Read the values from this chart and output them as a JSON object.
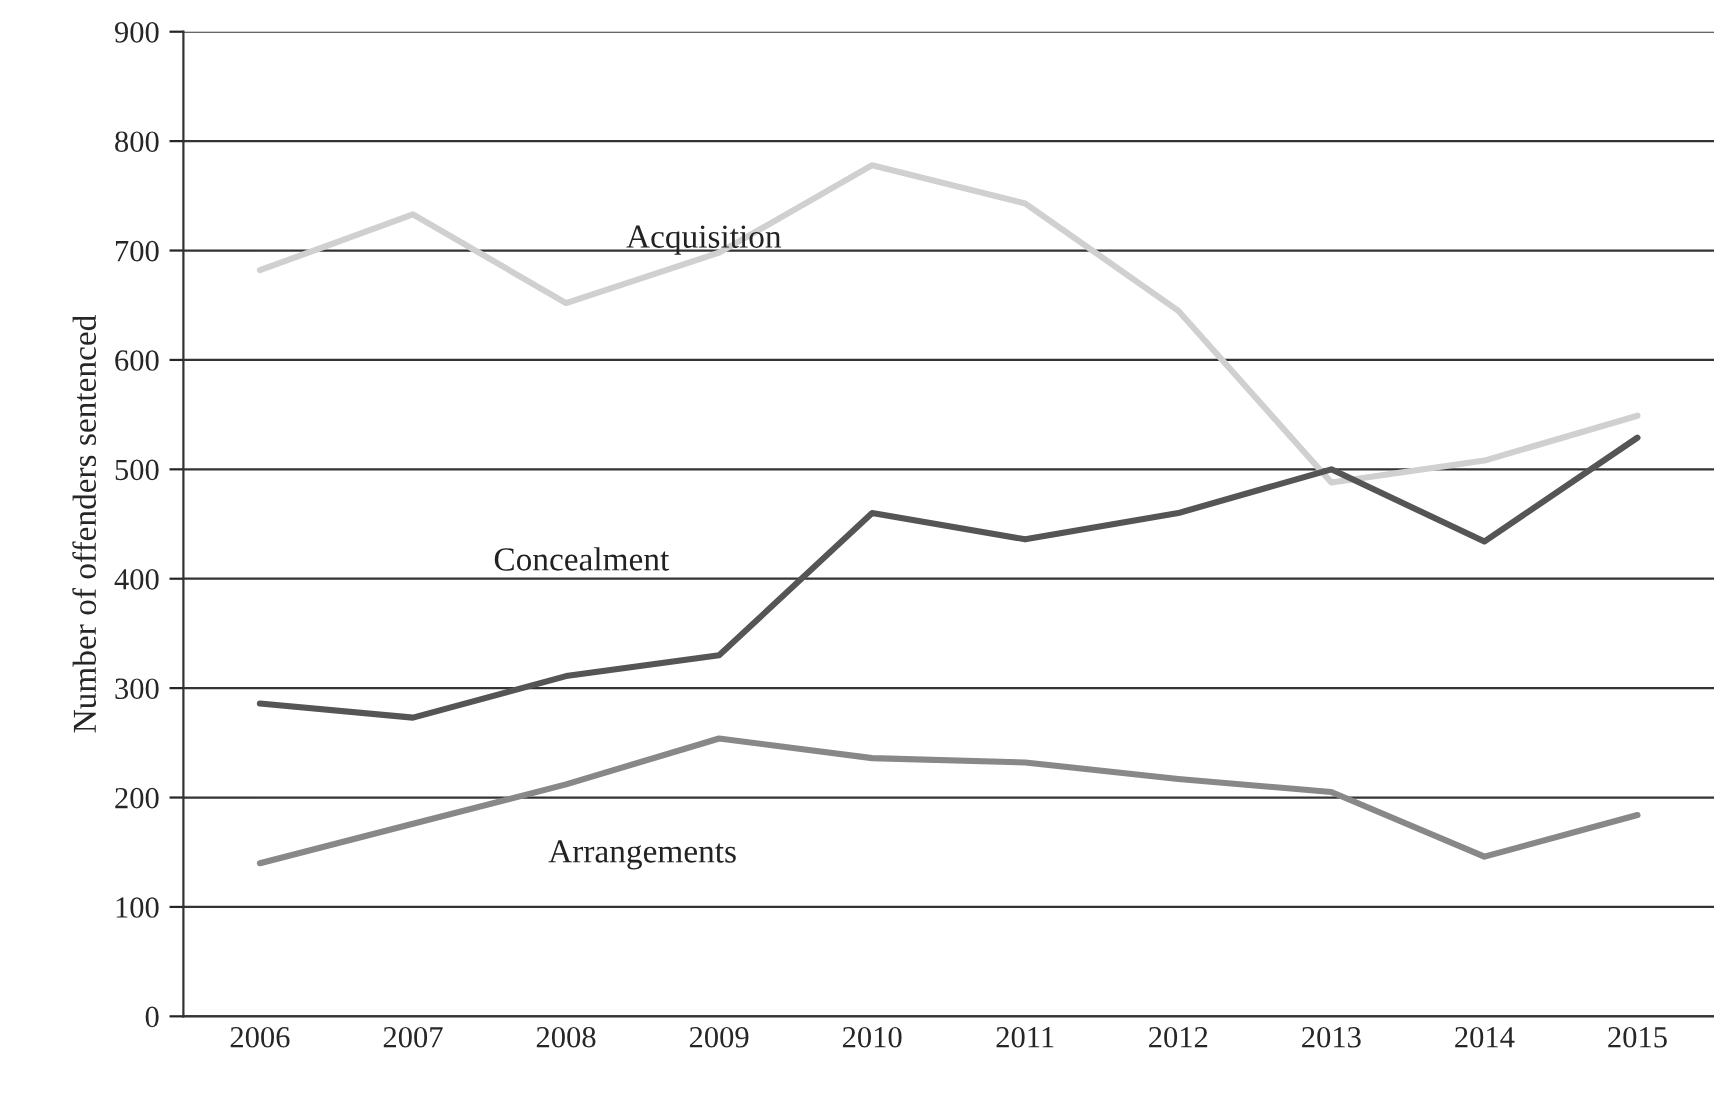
{
  "chart_data": {
    "type": "line",
    "ylabel": "Number of offenders sentenced",
    "categories": [
      "2006",
      "2007",
      "2008",
      "2009",
      "2010",
      "2011",
      "2012",
      "2013",
      "2014",
      "2015"
    ],
    "series": [
      {
        "name": "Acquisition",
        "color": "#d0d0d0",
        "values": [
          682,
          733,
          652,
          698,
          778,
          743,
          645,
          488,
          508,
          549
        ]
      },
      {
        "name": "Concealment",
        "color": "#555555",
        "values": [
          286,
          273,
          311,
          330,
          460,
          436,
          460,
          500,
          434,
          529
        ]
      },
      {
        "name": "Arrangements",
        "color": "#888888",
        "values": [
          140,
          176,
          212,
          254,
          236,
          232,
          217,
          205,
          146,
          184
        ]
      }
    ],
    "ylim": [
      0,
      900
    ],
    "yticks": [
      0,
      100,
      200,
      300,
      400,
      500,
      600,
      700,
      800,
      900
    ],
    "grid": "y",
    "legend": false,
    "marker": "none",
    "line_style": "solid"
  }
}
